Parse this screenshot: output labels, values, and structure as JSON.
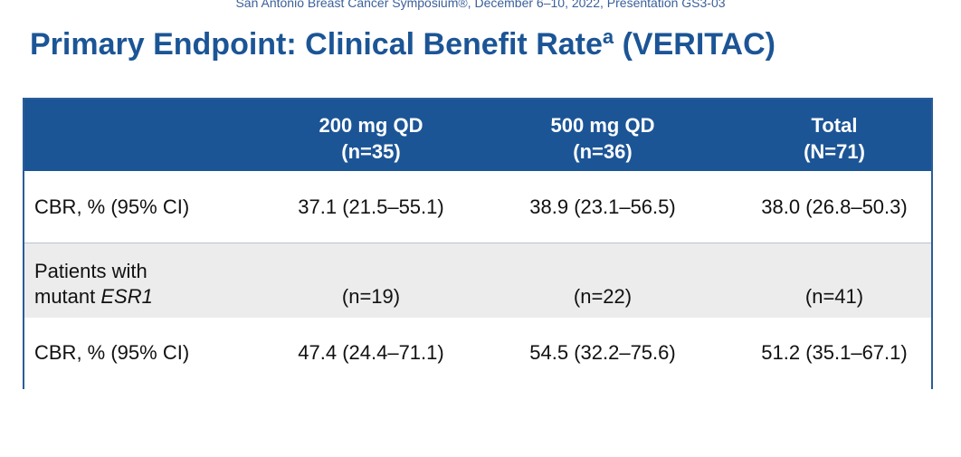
{
  "header": {
    "conference": "San Antonio Breast Cancer Symposium®, December 6–10, 2022, Presentation GS3-03",
    "title_main": "Primary Endpoint: Clinical Benefit Rate",
    "title_sup": "a",
    "title_tail": " (VERITAC)"
  },
  "table": {
    "columns": [
      {
        "line1": "200 mg QD",
        "line2": "(n=35)"
      },
      {
        "line1": "500 mg QD",
        "line2": "(n=36)"
      },
      {
        "line1": "Total",
        "line2": "(N=71)"
      }
    ],
    "row1": {
      "label": "CBR, % (95% CI)",
      "values": [
        "37.1 (21.5–55.1)",
        "38.9 (23.1–56.5)",
        "38.0 (26.8–50.3)"
      ]
    },
    "row2": {
      "label_line1": "Patients with",
      "label_line2_prefix": "mutant ",
      "label_line2_italic": "ESR1",
      "values": [
        "(n=19)",
        "(n=22)",
        "(n=41)"
      ]
    },
    "row3": {
      "label": "CBR, % (95% CI)",
      "values": [
        "47.4 (24.4–71.1)",
        "54.5 (32.2–75.6)",
        "51.2 (35.1–67.1)"
      ]
    }
  }
}
